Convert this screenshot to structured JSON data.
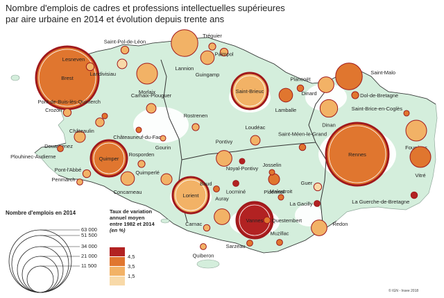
{
  "title": {
    "line1": "Nombre d'emplois de cadres et professions intellectuelles supérieures",
    "line2": "par aire urbaine en 2014 et évolution depuis trente ans"
  },
  "legend": {
    "size_title": "Nombre d'emplois en 2014",
    "size_values": [
      "63 000",
      "51 500",
      "34 000",
      "21 000",
      "11 500"
    ],
    "rate_title_lines": [
      "Taux de variation",
      "annuel moyen",
      "entre 1982 et 2014"
    ],
    "rate_unit": "(en %)",
    "rate_values": [
      "4,5",
      "3,5",
      "1,5"
    ],
    "rate_colors": [
      "#b22222",
      "#e0762f",
      "#f2b266",
      "#f8d9a8"
    ]
  },
  "credit": "© IGN - Insee 2018",
  "colors": {
    "land": "#d4eedc",
    "urban_white": "#ffffff",
    "border": "#333333",
    "circle_outline": "#a0191c"
  },
  "cities": [
    {
      "name": "Brest",
      "label_inside": true,
      "employees": 63000,
      "class": 1
    },
    {
      "name": "Rennes",
      "label_inside": true,
      "employees": 63000,
      "class": 1
    },
    {
      "name": "Quimper",
      "label_inside": true,
      "employees": 21000,
      "class": 1
    },
    {
      "name": "Lorient",
      "label_inside": true,
      "employees": 21000,
      "class": 2
    },
    {
      "name": "Vannes",
      "label_inside": true,
      "employees": 21000,
      "class": 0
    },
    {
      "name": "Saint-Brieuc",
      "label_inside": true,
      "employees": 21000,
      "class": 2
    },
    {
      "name": "Saint-Malo",
      "label_inside": false,
      "employees": 11500,
      "class": 1
    },
    {
      "name": "Lannion",
      "label_inside": false,
      "employees": 11500,
      "class": 2
    },
    {
      "name": "Morlaix",
      "label_inside": false,
      "employees": 7000,
      "class": 2
    },
    {
      "name": "Fougères",
      "label_inside": false,
      "employees": 7000,
      "class": 2
    },
    {
      "name": "Vitré",
      "label_inside": false,
      "employees": 7000,
      "class": 1
    },
    {
      "name": "Lamballe",
      "label_inside": false,
      "employees": 3000,
      "class": 1
    },
    {
      "name": "Dinan",
      "label_inside": false,
      "employees": 5000,
      "class": 2
    },
    {
      "name": "Dinard",
      "label_inside": false,
      "employees": 4000,
      "class": 2
    },
    {
      "name": "Guingamp",
      "label_inside": false,
      "employees": 3000,
      "class": 2
    },
    {
      "name": "Pontivy",
      "label_inside": false,
      "employees": 4000,
      "class": 2
    },
    {
      "name": "Redon",
      "label_inside": false,
      "employees": 4000,
      "class": 2
    },
    {
      "name": "Auray",
      "label_inside": false,
      "employees": 4000,
      "class": 2
    },
    {
      "name": "Ploërmel",
      "label_inside": false,
      "employees": 2000,
      "class": 1
    },
    {
      "name": "Concarneau",
      "label_inside": false,
      "employees": 3000,
      "class": 2
    },
    {
      "name": "Landivisiau",
      "label_inside": false,
      "employees": 1500,
      "class": 3
    },
    {
      "name": "Douarnenez",
      "label_inside": false,
      "employees": 2000,
      "class": 2
    },
    {
      "name": "Quimperlé",
      "label_inside": false,
      "employees": 2000,
      "class": 2
    },
    {
      "name": "Loudéac",
      "label_inside": false,
      "employees": 1500,
      "class": 2
    },
    {
      "name": "Rostrenen",
      "label_inside": false,
      "employees": 800,
      "class": 2
    },
    {
      "name": "Carhaix-Plouguer",
      "label_inside": false,
      "employees": 1500,
      "class": 2
    },
    {
      "name": "Châteaulin",
      "label_inside": false,
      "employees": 1200,
      "class": 2
    },
    {
      "name": "Saint-Pol-de-Léon",
      "label_inside": false,
      "employees": 1000,
      "class": 2
    },
    {
      "name": "Lesneven",
      "label_inside": false,
      "employees": 1000,
      "class": 2
    },
    {
      "name": "Crozon",
      "label_inside": false,
      "employees": 1000,
      "class": 2
    },
    {
      "name": "Pont-de-Buis-lès-Quimerch",
      "label_inside": false,
      "employees": 500,
      "class": 1
    },
    {
      "name": "Châteauneuf-du-Faou",
      "label_inside": false,
      "employees": 500,
      "class": 1
    },
    {
      "name": "Gourin",
      "label_inside": false,
      "employees": 500,
      "class": 2
    },
    {
      "name": "Rosporden",
      "label_inside": false,
      "employees": 800,
      "class": 2
    },
    {
      "name": "Pont-l'Abbé",
      "label_inside": false,
      "employees": 1000,
      "class": 2
    },
    {
      "name": "Penmarch",
      "label_inside": false,
      "employees": 600,
      "class": 2
    },
    {
      "name": "Plouhinec-Audierne",
      "label_inside": false,
      "employees": 600,
      "class": 1
    },
    {
      "name": "Tréguier",
      "label_inside": false,
      "employees": 800,
      "class": 2
    },
    {
      "name": "Paimpol",
      "label_inside": false,
      "employees": 1000,
      "class": 2
    },
    {
      "name": "Plancoët",
      "label_inside": false,
      "employees": 700,
      "class": 1
    },
    {
      "name": "Dol-de-Bretagne",
      "label_inside": false,
      "employees": 800,
      "class": 1
    },
    {
      "name": "Saint-Brice-en-Coglès",
      "label_inside": false,
      "employees": 500,
      "class": 1
    },
    {
      "name": "Saint-Méen-le-Grand",
      "label_inside": false,
      "employees": 700,
      "class": 1
    },
    {
      "name": "Noyal-Pontivy",
      "label_inside": false,
      "employees": 500,
      "class": 0
    },
    {
      "name": "Baud",
      "label_inside": false,
      "employees": 600,
      "class": 1
    },
    {
      "name": "Locminé",
      "label_inside": false,
      "employees": 600,
      "class": 0
    },
    {
      "name": "Josselin",
      "label_inside": false,
      "employees": 500,
      "class": 1
    },
    {
      "name": "Malestroit",
      "label_inside": false,
      "employees": 500,
      "class": 1
    },
    {
      "name": "Guer",
      "label_inside": false,
      "employees": 1000,
      "class": 3
    },
    {
      "name": "La Gacilly",
      "label_inside": false,
      "employees": 600,
      "class": 0
    },
    {
      "name": "Carnac",
      "label_inside": false,
      "employees": 700,
      "class": 2
    },
    {
      "name": "Questembert",
      "label_inside": false,
      "employees": 700,
      "class": 1
    },
    {
      "name": "Sarzeau",
      "label_inside": false,
      "employees": 600,
      "class": 1
    },
    {
      "name": "Muzillac",
      "label_inside": false,
      "employees": 600,
      "class": 1
    },
    {
      "name": "Quiberon",
      "label_inside": false,
      "employees": 600,
      "class": 2
    },
    {
      "name": "La Guerche-de-Bretagne",
      "label_inside": false,
      "employees": 700,
      "class": 0
    }
  ]
}
